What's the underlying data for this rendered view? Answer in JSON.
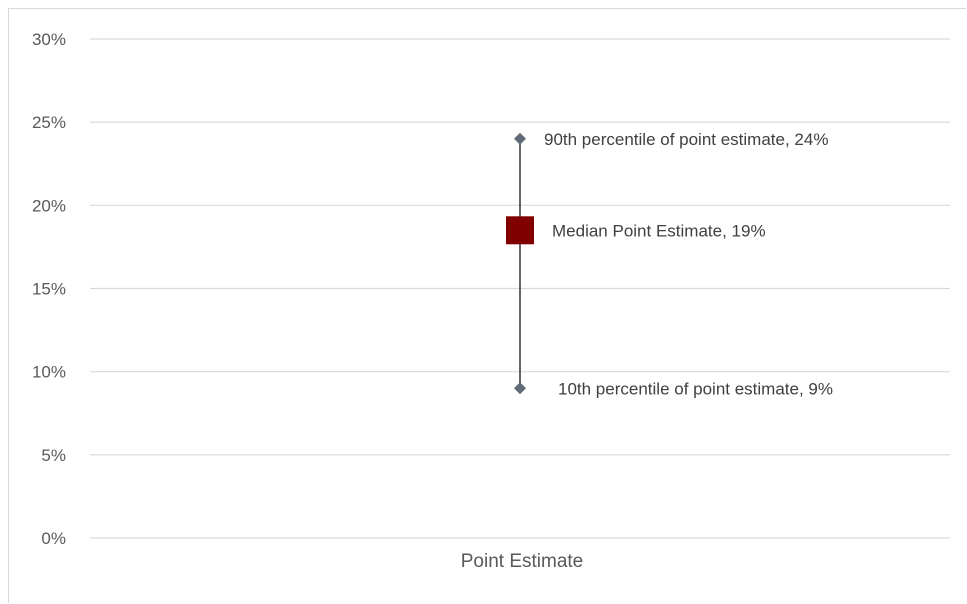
{
  "chart_data": {
    "type": "scatter",
    "categories": [
      "Point Estimate"
    ],
    "ylim": [
      0,
      0.3
    ],
    "y_tick_step": 0.05,
    "y_tick_labels": [
      "0%",
      "5%",
      "10%",
      "15%",
      "20%",
      "25%",
      "30%"
    ],
    "grid": true,
    "series": [
      {
        "key": "p90",
        "values": [
          0.24
        ],
        "data_label": "90th percentile of point estimate, 24%",
        "marker": "diamond",
        "color": "#5f6b78"
      },
      {
        "key": "median",
        "values": [
          0.185
        ],
        "data_label": "Median Point Estimate, 19%",
        "marker": "square",
        "color": "#800000"
      },
      {
        "key": "p10",
        "values": [
          0.09
        ],
        "data_label": "10th percentile of point estimate, 9%",
        "marker": "diamond",
        "color": "#5f6b78"
      }
    ],
    "range_line_color": "#404040",
    "gridline_color": "#d9d9d9"
  }
}
